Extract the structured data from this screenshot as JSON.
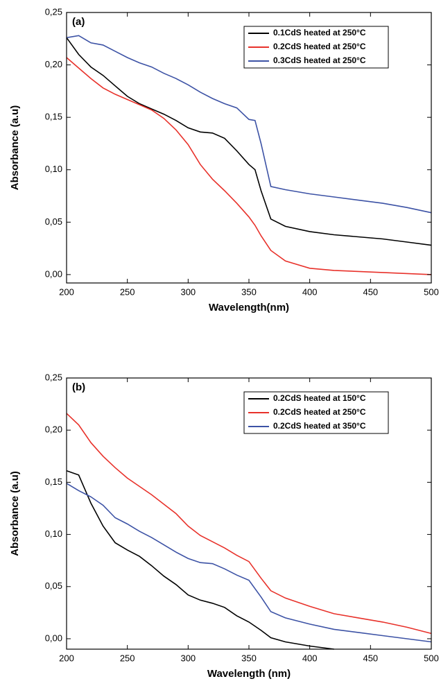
{
  "chart_data": [
    {
      "type": "line",
      "annotation": "(a)",
      "x_label": "Wavelength(nm)",
      "y_label": "Absorbance (a.u)",
      "x": [
        200,
        210,
        220,
        230,
        240,
        250,
        260,
        270,
        280,
        290,
        300,
        310,
        320,
        330,
        340,
        350,
        355,
        360,
        368,
        380,
        400,
        420,
        440,
        460,
        480,
        500
      ],
      "series": [
        {
          "name": "0.1CdS heated at 250°C",
          "color": "#000000",
          "values": [
            0.226,
            0.21,
            0.198,
            0.19,
            0.18,
            0.17,
            0.163,
            0.158,
            0.153,
            0.147,
            0.14,
            0.136,
            0.135,
            0.13,
            0.118,
            0.105,
            0.1,
            0.08,
            0.053,
            0.046,
            0.041,
            0.038,
            0.036,
            0.034,
            0.031,
            0.028
          ]
        },
        {
          "name": "0.2CdS heated at 250°C",
          "color": "#e8312a",
          "values": [
            0.207,
            0.197,
            0.187,
            0.178,
            0.172,
            0.167,
            0.162,
            0.157,
            0.149,
            0.138,
            0.124,
            0.105,
            0.091,
            0.08,
            0.068,
            0.055,
            0.047,
            0.037,
            0.023,
            0.013,
            0.006,
            0.004,
            0.003,
            0.002,
            0.001,
            0.0
          ]
        },
        {
          "name": "0.3CdS heated at 250°C",
          "color": "#3c52a5",
          "values": [
            0.226,
            0.228,
            0.221,
            0.219,
            0.213,
            0.207,
            0.202,
            0.198,
            0.192,
            0.187,
            0.181,
            0.174,
            0.168,
            0.163,
            0.159,
            0.148,
            0.147,
            0.125,
            0.084,
            0.081,
            0.077,
            0.074,
            0.071,
            0.068,
            0.064,
            0.059
          ]
        }
      ],
      "xlim": [
        200,
        500
      ],
      "xticks": [
        200,
        250,
        300,
        350,
        400,
        450,
        500
      ],
      "ylim": [
        -0.008,
        0.25
      ],
      "yticks": [
        {
          "value": 0,
          "label": "0,00"
        },
        {
          "value": 0.05,
          "label": "0,05"
        },
        {
          "value": 0.1,
          "label": "0,10"
        },
        {
          "value": 0.15,
          "label": "0,15"
        },
        {
          "value": 0.2,
          "label": "0,20"
        },
        {
          "value": 0.25,
          "label": "0,25"
        }
      ],
      "legend": "upper right"
    },
    {
      "type": "line",
      "annotation": "(b)",
      "x_label": "Wavelength (nm)",
      "y_label": "Absorbance (a.u)",
      "x": [
        200,
        210,
        220,
        230,
        240,
        250,
        260,
        270,
        280,
        290,
        300,
        310,
        320,
        330,
        340,
        350,
        360,
        368,
        380,
        400,
        420,
        440,
        460,
        480,
        500
      ],
      "series": [
        {
          "name": "0.2CdS heated at 150°C",
          "color": "#000000",
          "values": [
            0.161,
            0.157,
            0.13,
            0.108,
            0.092,
            0.085,
            0.079,
            0.07,
            0.06,
            0.052,
            0.042,
            0.037,
            0.034,
            0.03,
            0.022,
            0.016,
            0.008,
            0.001,
            -0.003,
            -0.007,
            -0.01,
            null,
            null,
            null,
            null
          ]
        },
        {
          "name": "0.2CdS heated at 250°C",
          "color": "#e8312a",
          "values": [
            0.216,
            0.205,
            0.188,
            0.175,
            0.164,
            0.154,
            0.146,
            0.138,
            0.129,
            0.12,
            0.108,
            0.099,
            0.093,
            0.087,
            0.08,
            0.074,
            0.058,
            0.046,
            0.039,
            0.031,
            0.024,
            0.02,
            0.016,
            0.011,
            0.005
          ]
        },
        {
          "name": "0.2CdS heated at 350°C",
          "color": "#3c52a5",
          "values": [
            0.149,
            0.142,
            0.136,
            0.128,
            0.116,
            0.11,
            0.103,
            0.097,
            0.09,
            0.083,
            0.077,
            0.073,
            0.072,
            0.067,
            0.061,
            0.056,
            0.04,
            0.026,
            0.02,
            0.014,
            0.009,
            0.006,
            0.003,
            0.0,
            -0.003
          ]
        }
      ],
      "xlim": [
        200,
        500
      ],
      "xticks": [
        200,
        250,
        300,
        350,
        400,
        450,
        500
      ],
      "ylim": [
        -0.01,
        0.25
      ],
      "yticks": [
        {
          "value": 0,
          "label": "0,00"
        },
        {
          "value": 0.05,
          "label": "0,05"
        },
        {
          "value": 0.1,
          "label": "0,10"
        },
        {
          "value": 0.15,
          "label": "0,15"
        },
        {
          "value": 0.2,
          "label": "0,20"
        },
        {
          "value": 0.25,
          "label": "0,25"
        }
      ],
      "legend": "upper right"
    }
  ]
}
